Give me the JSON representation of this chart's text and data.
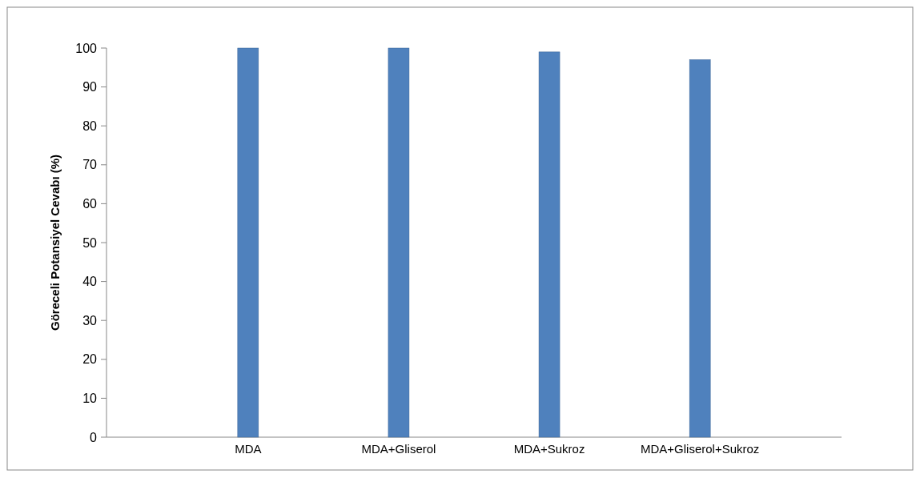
{
  "chart_data": {
    "type": "bar",
    "ylabel": "Göreceli Potansiyel Cevabı (%)",
    "categories": [
      "MDA",
      "MDA+Gliserol",
      "MDA+Sukroz",
      "MDA+Gliserol+Sukroz"
    ],
    "values": [
      100,
      100,
      99,
      97
    ],
    "color": "#4f81bd",
    "ylim": [
      0,
      100
    ],
    "yticks": [
      0,
      10,
      20,
      30,
      40,
      50,
      60,
      70,
      80,
      90,
      100
    ],
    "grid": false
  }
}
